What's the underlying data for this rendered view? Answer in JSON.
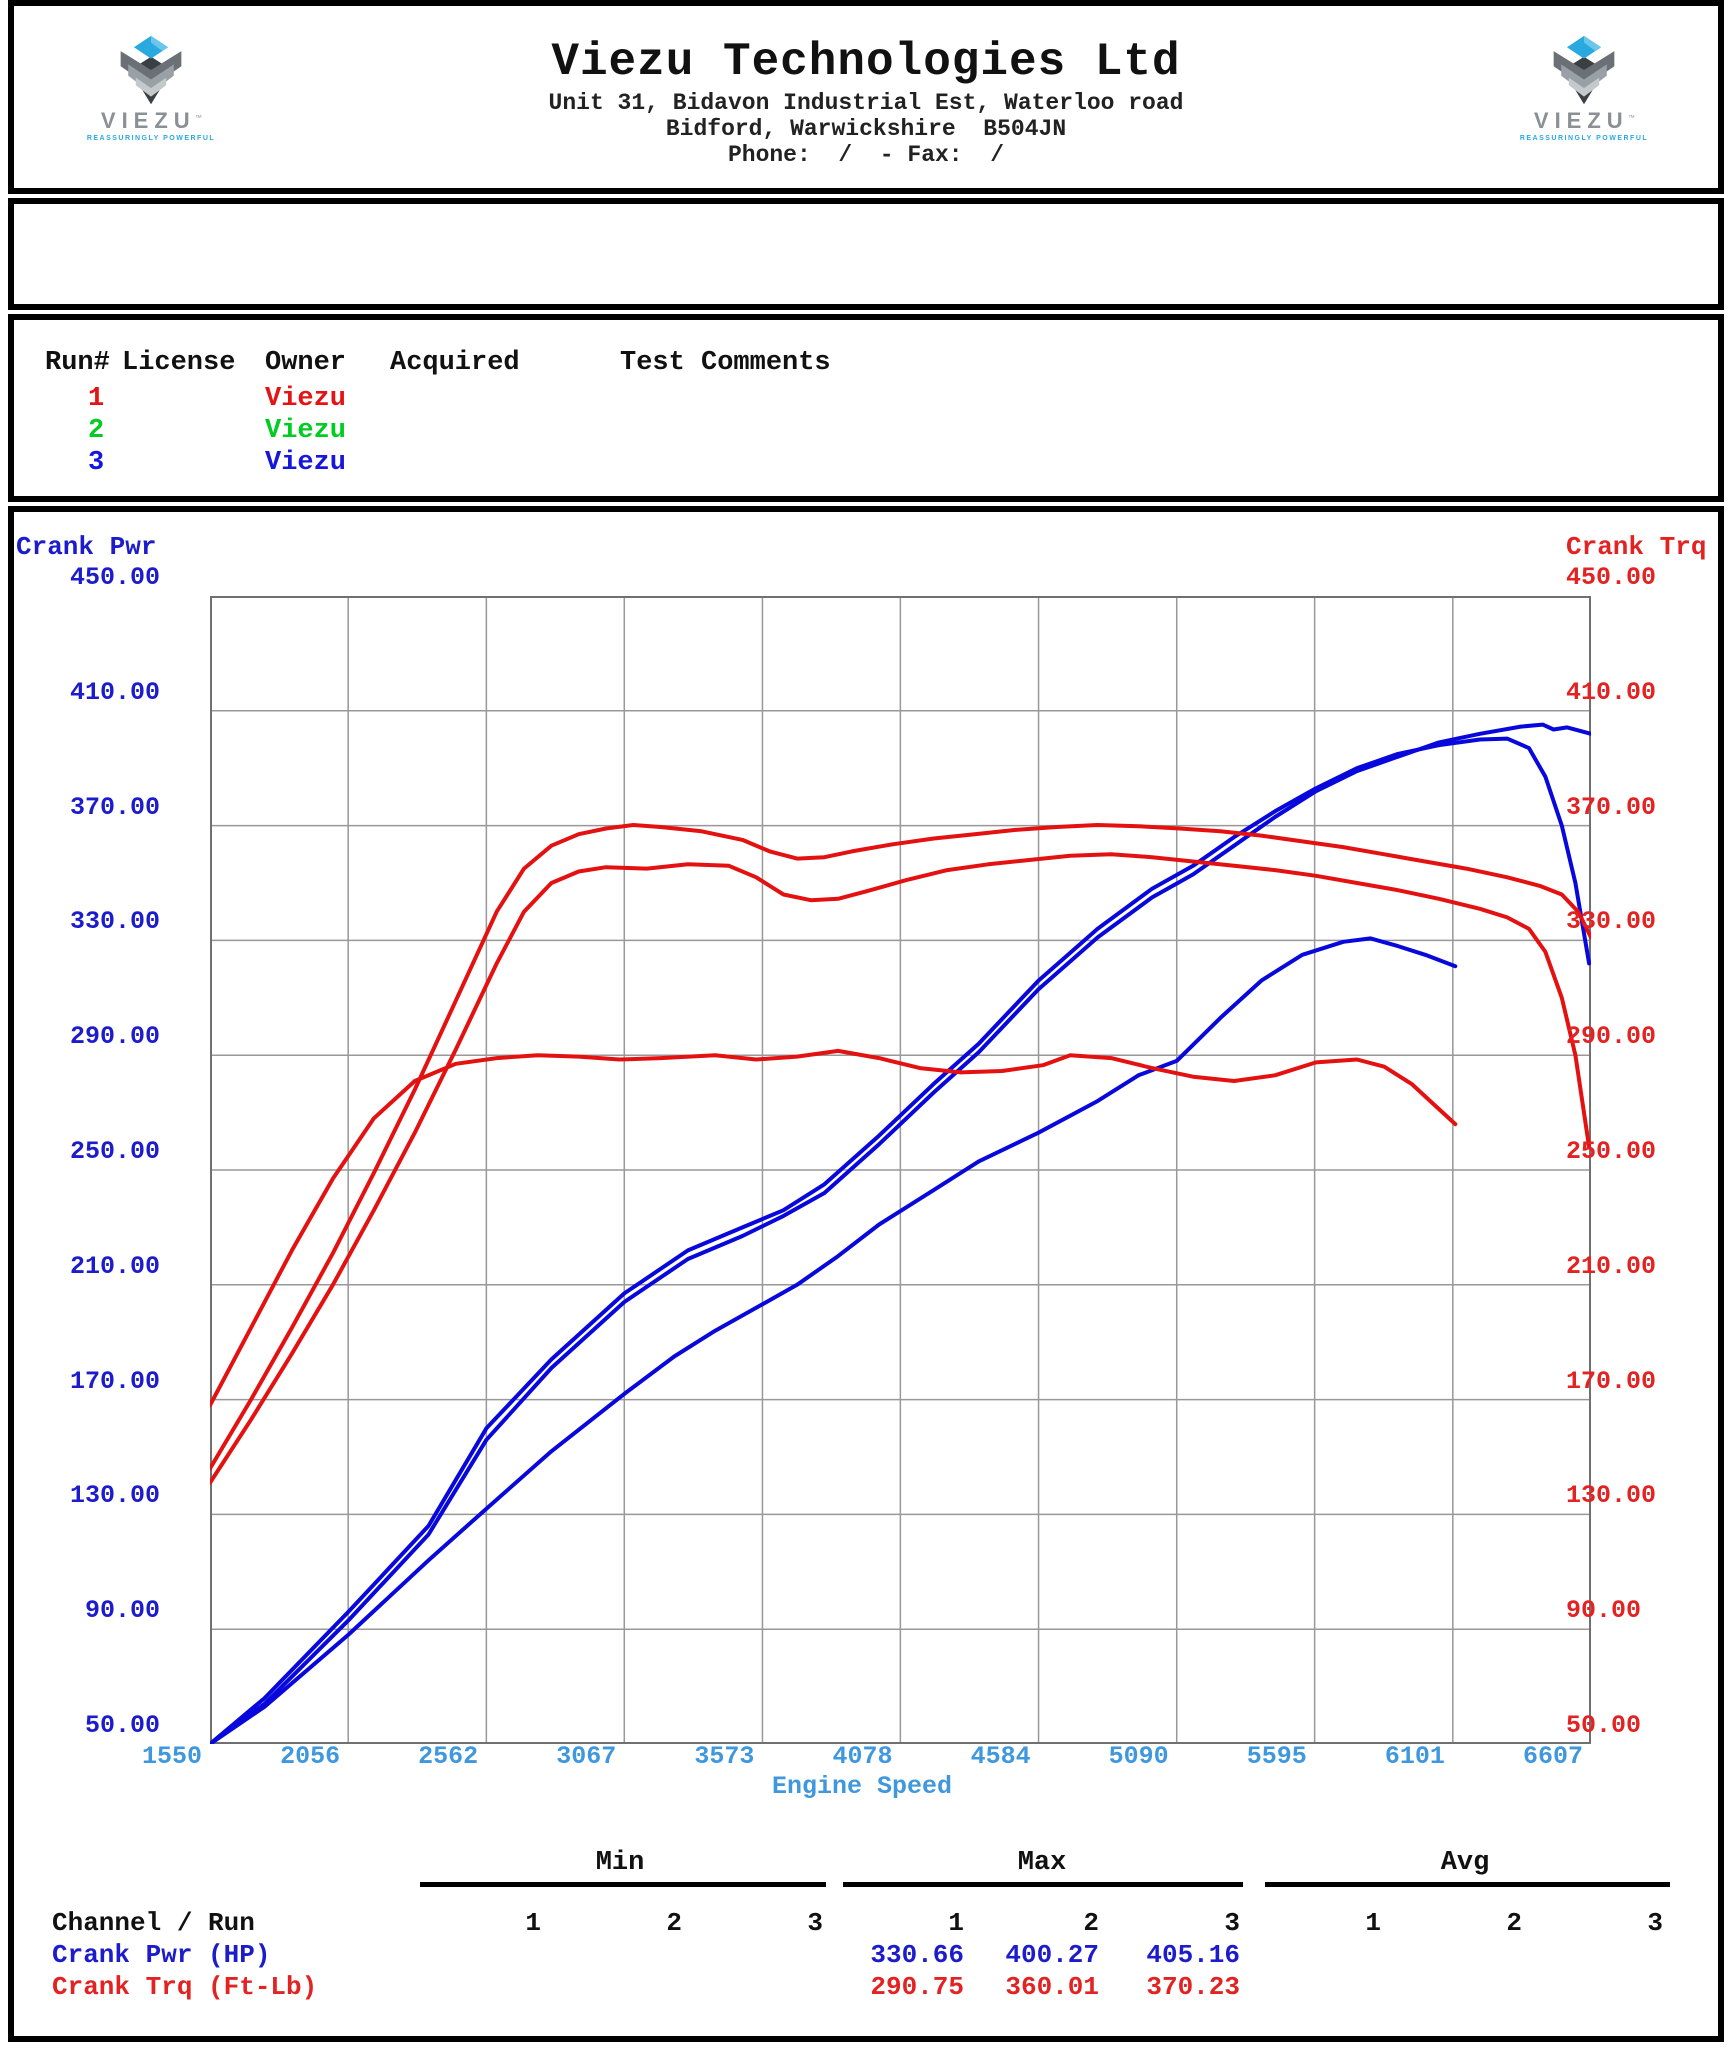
{
  "header": {
    "company": "Viezu Technologies Ltd",
    "address1": "Unit 31, Bidavon Industrial Est, Waterloo road",
    "address2": "Bidford, Warwickshire  B504JN",
    "phone_fax": "Phone:  /  - Fax:  /",
    "logo": {
      "brand": "VIEZU",
      "tm": "™",
      "tagline": "REASSURINGLY POWERFUL",
      "diamond_color": "#2aa9e0"
    }
  },
  "runs_table": {
    "headers": [
      "Run#",
      "License",
      "Owner",
      "Acquired",
      "Test Comments"
    ],
    "rows": [
      {
        "run": "1",
        "license": "",
        "owner": "Viezu",
        "acquired": "",
        "comments": "",
        "color": "#e41414"
      },
      {
        "run": "2",
        "license": "",
        "owner": "Viezu",
        "acquired": "",
        "comments": "",
        "color": "#00cc22"
      },
      {
        "run": "3",
        "license": "",
        "owner": "Viezu",
        "acquired": "",
        "comments": "",
        "color": "#1616dd"
      }
    ]
  },
  "chart_data": {
    "type": "line",
    "left_axis_title": "Crank Pwr",
    "right_axis_title": "Crank Trq",
    "xlabel": "Engine Speed",
    "x_ticks": [
      1550,
      2056,
      2562,
      3067,
      3573,
      4078,
      4584,
      5090,
      5595,
      6101,
      6607
    ],
    "y_ticks": [
      "450.00",
      "410.00",
      "370.00",
      "330.00",
      "290.00",
      "250.00",
      "210.00",
      "170.00",
      "130.00",
      "90.00",
      "50.00"
    ],
    "xlim": [
      1550,
      6607
    ],
    "ylim": [
      50,
      450
    ],
    "grid": true,
    "colors": {
      "power": "#0808dc",
      "torque": "#e41111",
      "grid": "#989898",
      "frame": "#707070"
    },
    "series": [
      {
        "name": "Crank Pwr Run 1",
        "axis": "left",
        "color": "#0808dc",
        "points": [
          [
            1550,
            50
          ],
          [
            1750,
            63
          ],
          [
            2056,
            88
          ],
          [
            2350,
            114
          ],
          [
            2562,
            132
          ],
          [
            2800,
            152
          ],
          [
            3067,
            172
          ],
          [
            3250,
            185
          ],
          [
            3400,
            194
          ],
          [
            3550,
            202
          ],
          [
            3700,
            210
          ],
          [
            3850,
            220
          ],
          [
            4000,
            231
          ],
          [
            4200,
            243
          ],
          [
            4365,
            253
          ],
          [
            4584,
            263
          ],
          [
            4800,
            274
          ],
          [
            4950,
            283
          ],
          [
            5090,
            288
          ],
          [
            5250,
            303
          ],
          [
            5400,
            316
          ],
          [
            5550,
            325
          ],
          [
            5700,
            329.5
          ],
          [
            5800,
            330.7
          ],
          [
            5900,
            328
          ],
          [
            6000,
            325
          ],
          [
            6110,
            321
          ]
        ]
      },
      {
        "name": "Crank Pwr Run 2",
        "axis": "left",
        "color": "#0808dc",
        "points": [
          [
            1550,
            50
          ],
          [
            1750,
            66
          ],
          [
            2056,
            96
          ],
          [
            2350,
            126
          ],
          [
            2562,
            160
          ],
          [
            2800,
            184
          ],
          [
            3067,
            207
          ],
          [
            3300,
            222
          ],
          [
            3500,
            230
          ],
          [
            3650,
            236
          ],
          [
            3800,
            245
          ],
          [
            4000,
            262
          ],
          [
            4200,
            280
          ],
          [
            4365,
            294
          ],
          [
            4584,
            316
          ],
          [
            4800,
            334
          ],
          [
            5000,
            348
          ],
          [
            5150,
            356
          ],
          [
            5300,
            366
          ],
          [
            5450,
            375
          ],
          [
            5600,
            383
          ],
          [
            5750,
            390
          ],
          [
            5900,
            395
          ],
          [
            6050,
            398
          ],
          [
            6200,
            400
          ],
          [
            6300,
            400.3
          ],
          [
            6380,
            397
          ],
          [
            6440,
            387
          ],
          [
            6500,
            370
          ],
          [
            6550,
            350
          ],
          [
            6600,
            322
          ]
        ]
      },
      {
        "name": "Crank Pwr Run 3",
        "axis": "left",
        "color": "#0808dc",
        "points": [
          [
            1550,
            50
          ],
          [
            1750,
            64
          ],
          [
            2056,
            93
          ],
          [
            2350,
            123
          ],
          [
            2562,
            156
          ],
          [
            2800,
            181
          ],
          [
            3067,
            204
          ],
          [
            3300,
            219
          ],
          [
            3500,
            227
          ],
          [
            3650,
            234
          ],
          [
            3800,
            242
          ],
          [
            4000,
            259
          ],
          [
            4200,
            277
          ],
          [
            4365,
            291
          ],
          [
            4584,
            313
          ],
          [
            4800,
            331
          ],
          [
            5000,
            345
          ],
          [
            5150,
            353
          ],
          [
            5300,
            363
          ],
          [
            5450,
            373
          ],
          [
            5600,
            382
          ],
          [
            5750,
            389
          ],
          [
            5900,
            394
          ],
          [
            6050,
            399
          ],
          [
            6200,
            402
          ],
          [
            6350,
            404.5
          ],
          [
            6430,
            405.2
          ],
          [
            6470,
            403.5
          ],
          [
            6520,
            404.2
          ],
          [
            6607,
            402
          ]
        ]
      },
      {
        "name": "Crank Trq Run 1",
        "axis": "right",
        "color": "#e41111",
        "points": [
          [
            1550,
            168
          ],
          [
            1700,
            195
          ],
          [
            1850,
            222
          ],
          [
            2000,
            247
          ],
          [
            2150,
            268
          ],
          [
            2300,
            281
          ],
          [
            2450,
            287
          ],
          [
            2600,
            289
          ],
          [
            2750,
            290
          ],
          [
            2900,
            289.5
          ],
          [
            3050,
            288.5
          ],
          [
            3200,
            289
          ],
          [
            3400,
            290
          ],
          [
            3550,
            288.5
          ],
          [
            3700,
            289.5
          ],
          [
            3850,
            291.5
          ],
          [
            4000,
            289
          ],
          [
            4150,
            285.5
          ],
          [
            4300,
            284
          ],
          [
            4450,
            284.5
          ],
          [
            4600,
            286.5
          ],
          [
            4700,
            290
          ],
          [
            4850,
            289
          ],
          [
            5000,
            285.5
          ],
          [
            5150,
            282.5
          ],
          [
            5300,
            281
          ],
          [
            5450,
            283
          ],
          [
            5600,
            287.5
          ],
          [
            5750,
            288.5
          ],
          [
            5850,
            286
          ],
          [
            5950,
            280
          ],
          [
            6030,
            273
          ],
          [
            6110,
            266
          ]
        ]
      },
      {
        "name": "Crank Trq Run 2",
        "axis": "right",
        "color": "#e41111",
        "points": [
          [
            1550,
            141
          ],
          [
            1700,
            163
          ],
          [
            1850,
            186
          ],
          [
            2000,
            210
          ],
          [
            2150,
            236
          ],
          [
            2300,
            263
          ],
          [
            2450,
            292
          ],
          [
            2600,
            322
          ],
          [
            2700,
            340
          ],
          [
            2800,
            350
          ],
          [
            2900,
            354
          ],
          [
            3000,
            355.5
          ],
          [
            3150,
            355
          ],
          [
            3300,
            356.5
          ],
          [
            3450,
            356
          ],
          [
            3550,
            352
          ],
          [
            3650,
            346
          ],
          [
            3750,
            344
          ],
          [
            3850,
            344.5
          ],
          [
            3950,
            347
          ],
          [
            4100,
            351
          ],
          [
            4250,
            354.5
          ],
          [
            4400,
            356.5
          ],
          [
            4550,
            358
          ],
          [
            4700,
            359.5
          ],
          [
            4850,
            360
          ],
          [
            5000,
            359
          ],
          [
            5150,
            357.5
          ],
          [
            5300,
            356
          ],
          [
            5450,
            354.5
          ],
          [
            5600,
            352.5
          ],
          [
            5750,
            350
          ],
          [
            5900,
            347.5
          ],
          [
            6050,
            344.5
          ],
          [
            6200,
            341
          ],
          [
            6300,
            338
          ],
          [
            6380,
            334
          ],
          [
            6440,
            326
          ],
          [
            6500,
            310
          ],
          [
            6550,
            290
          ],
          [
            6600,
            258
          ]
        ]
      },
      {
        "name": "Crank Trq Run 3",
        "axis": "right",
        "color": "#e41111",
        "points": [
          [
            1550,
            146
          ],
          [
            1700,
            170
          ],
          [
            1850,
            195
          ],
          [
            2000,
            221
          ],
          [
            2150,
            249
          ],
          [
            2300,
            278
          ],
          [
            2450,
            309
          ],
          [
            2600,
            340
          ],
          [
            2700,
            355
          ],
          [
            2800,
            363
          ],
          [
            2900,
            367
          ],
          [
            3000,
            369
          ],
          [
            3100,
            370.2
          ],
          [
            3200,
            369.5
          ],
          [
            3350,
            368
          ],
          [
            3500,
            365
          ],
          [
            3600,
            361
          ],
          [
            3700,
            358.5
          ],
          [
            3800,
            359
          ],
          [
            3900,
            361
          ],
          [
            4050,
            363.5
          ],
          [
            4200,
            365.5
          ],
          [
            4350,
            367
          ],
          [
            4500,
            368.5
          ],
          [
            4650,
            369.5
          ],
          [
            4800,
            370.2
          ],
          [
            4950,
            369.8
          ],
          [
            5100,
            369
          ],
          [
            5250,
            368
          ],
          [
            5400,
            366.5
          ],
          [
            5550,
            364.5
          ],
          [
            5700,
            362.5
          ],
          [
            5850,
            360
          ],
          [
            6000,
            357.5
          ],
          [
            6150,
            355
          ],
          [
            6300,
            352
          ],
          [
            6420,
            349
          ],
          [
            6500,
            346
          ],
          [
            6560,
            340
          ],
          [
            6607,
            331
          ]
        ]
      }
    ]
  },
  "summary_table": {
    "group_headers": [
      "Min",
      "Max",
      "Avg"
    ],
    "col_headers": [
      "1",
      "2",
      "3"
    ],
    "row_header": "Channel / Run",
    "rows": [
      {
        "label": "Crank Pwr (HP)",
        "color": "#1c1ccc",
        "min": [
          "",
          "",
          ""
        ],
        "max": [
          "330.66",
          "400.27",
          "405.16"
        ],
        "avg": [
          "",
          "",
          ""
        ]
      },
      {
        "label": "Crank Trq (Ft-Lb)",
        "color": "#e32222",
        "min": [
          "",
          "",
          ""
        ],
        "max": [
          "290.75",
          "360.01",
          "370.23"
        ],
        "avg": [
          "",
          "",
          ""
        ]
      }
    ]
  }
}
